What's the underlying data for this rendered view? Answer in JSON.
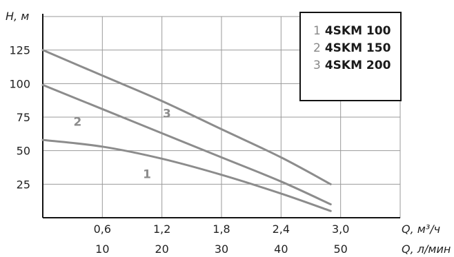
{
  "chart_data": {
    "type": "line",
    "ylabel": "H, м",
    "yticks": [
      "125",
      "100",
      "75",
      "50",
      "25"
    ],
    "xlabel_primary": "Q, м³/ч",
    "xticks_primary": [
      "0,6",
      "1,2",
      "1,8",
      "2,4",
      "3,0"
    ],
    "xlabel_secondary": "Q, л/мин",
    "xticks_secondary": [
      "10",
      "20",
      "30",
      "40",
      "50"
    ],
    "xlim": [
      0,
      3.6
    ],
    "ylim": [
      0,
      150
    ],
    "grid": true,
    "legend_position": "top-right",
    "line_color": "#8c8c8c",
    "series": [
      {
        "name": "4SKM 100",
        "label": "1",
        "points": [
          [
            0,
            58
          ],
          [
            0.6,
            53
          ],
          [
            1.2,
            44
          ],
          [
            1.8,
            32
          ],
          [
            2.4,
            18
          ],
          [
            2.9,
            5
          ]
        ]
      },
      {
        "name": "4SKM 150",
        "label": "2",
        "points": [
          [
            0,
            99
          ],
          [
            0.6,
            81
          ],
          [
            1.2,
            63
          ],
          [
            1.8,
            45
          ],
          [
            2.4,
            27
          ],
          [
            2.9,
            10
          ]
        ]
      },
      {
        "name": "4SKM 200",
        "label": "3",
        "points": [
          [
            0,
            125
          ],
          [
            0.6,
            106
          ],
          [
            1.2,
            87
          ],
          [
            1.8,
            66
          ],
          [
            2.4,
            45
          ],
          [
            2.9,
            25
          ]
        ]
      }
    ],
    "legend": [
      {
        "num": "1",
        "name": "4SKM 100"
      },
      {
        "num": "2",
        "name": "4SKM 150"
      },
      {
        "num": "3",
        "name": "4SKM 200"
      }
    ]
  }
}
